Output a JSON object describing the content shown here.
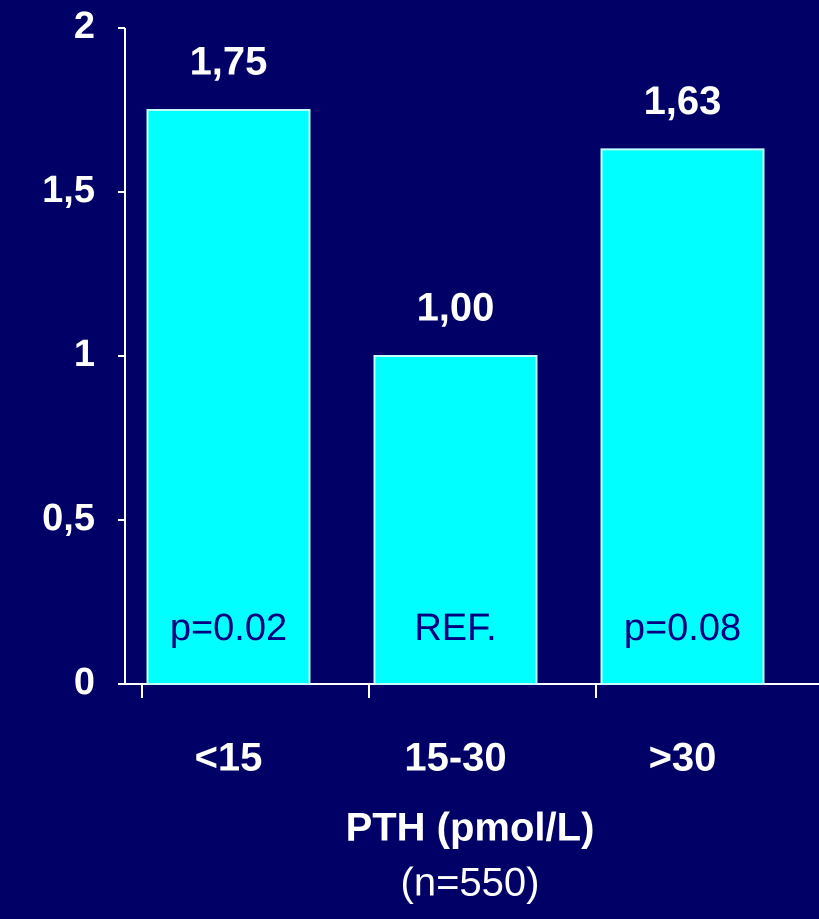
{
  "chart_data": {
    "type": "bar",
    "categories": [
      "<15",
      "15-30",
      ">30"
    ],
    "values": [
      1.75,
      1.0,
      1.63
    ],
    "value_labels": [
      "1,75",
      "1,00",
      "1,63"
    ],
    "bar_annotations": [
      "p=0.02",
      "REF.",
      "p=0.08"
    ],
    "color": "#00ffff",
    "x_label": "PTH (pmol/L)",
    "x_sublabel": "(n=550)",
    "ylim": [
      0,
      2
    ],
    "yticks": [
      0,
      {
        "value": 0.5,
        "label": "0,5"
      },
      1,
      {
        "value": 1.5,
        "label": "1,5"
      },
      2
    ],
    "grid": false
  }
}
